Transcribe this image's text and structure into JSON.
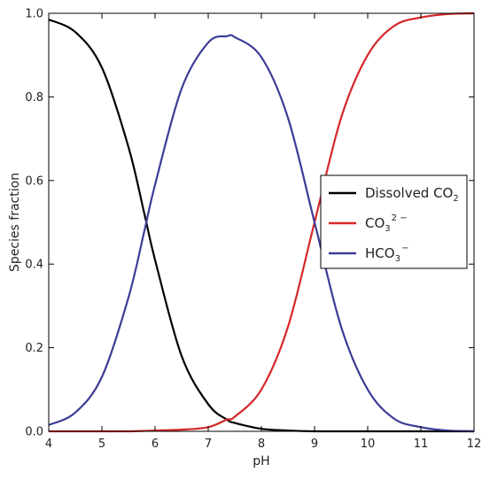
{
  "chart_data": {
    "type": "line",
    "title": "",
    "xlabel": "pH",
    "ylabel": "Species fraction",
    "xlim": [
      4,
      12
    ],
    "ylim": [
      0.0,
      1.0
    ],
    "grid": false,
    "legend_position": "center-right",
    "x_ticks": [
      "4",
      "5",
      "6",
      "7",
      "8",
      "9",
      "10",
      "11",
      "12"
    ],
    "y_ticks": [
      "0.0",
      "0.2",
      "0.4",
      "0.6",
      "0.8",
      "1.0"
    ],
    "x": [
      4.0,
      4.5,
      5.0,
      5.5,
      5.8,
      6.0,
      6.5,
      7.0,
      7.35,
      7.5,
      8.0,
      8.5,
      9.0,
      9.5,
      10.0,
      10.5,
      11.0,
      11.5,
      12.0
    ],
    "series": [
      {
        "name": "Dissolved CO",
        "name_sub": "2",
        "name_sup": "",
        "color": "#000000",
        "values": [
          0.985,
          0.955,
          0.87,
          0.68,
          0.52,
          0.41,
          0.18,
          0.065,
          0.028,
          0.02,
          0.006,
          0.002,
          0.0,
          0.0,
          0.0,
          0.0,
          0.0,
          0.0,
          0.0
        ]
      },
      {
        "name": "CO",
        "name_sub": "3",
        "name_sup": "2 −",
        "color": "#d62728",
        "values": [
          0.0,
          0.0,
          0.0,
          0.0,
          0.001,
          0.002,
          0.004,
          0.01,
          0.028,
          0.035,
          0.1,
          0.25,
          0.5,
          0.75,
          0.9,
          0.97,
          0.99,
          0.998,
          1.0
        ]
      },
      {
        "name": "HCO",
        "name_sub": "3",
        "name_sup": "−",
        "color": "#3c3c96",
        "values": [
          0.015,
          0.045,
          0.13,
          0.32,
          0.48,
          0.59,
          0.82,
          0.93,
          0.945,
          0.943,
          0.895,
          0.75,
          0.5,
          0.25,
          0.1,
          0.03,
          0.01,
          0.002,
          0.0
        ]
      }
    ]
  }
}
